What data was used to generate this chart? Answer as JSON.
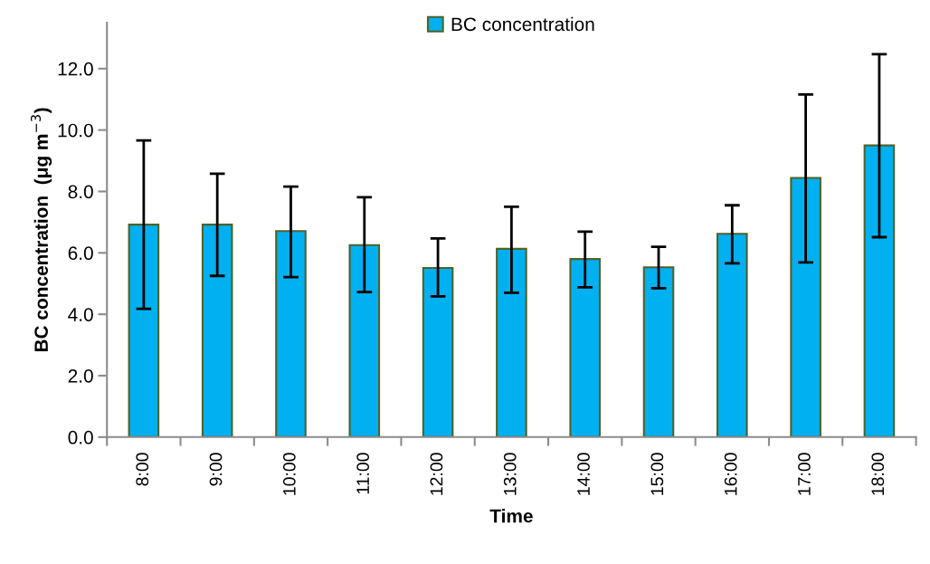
{
  "chart_data": {
    "type": "bar",
    "xlabel": "Time",
    "ylabel": "BC concentration  (μg m$^{−3}$)",
    "categories": [
      "8:00",
      "9:00",
      "10:00",
      "11:00",
      "12:00",
      "13:00",
      "14:00",
      "15:00",
      "16:00",
      "17:00",
      "18:00"
    ],
    "series": [
      {
        "name": "BC concentration",
        "color": "#00b0f0",
        "values": [
          6.92,
          6.92,
          6.71,
          6.25,
          5.51,
          6.13,
          5.8,
          5.53,
          6.62,
          8.44,
          9.5
        ],
        "errors": [
          [
            4.18,
            9.66
          ],
          [
            5.25,
            8.58
          ],
          [
            5.21,
            8.16
          ],
          [
            4.72,
            7.81
          ],
          [
            4.58,
            6.47
          ],
          [
            4.7,
            7.5
          ],
          [
            4.88,
            6.69
          ],
          [
            4.85,
            6.2
          ],
          [
            5.66,
            7.55
          ],
          [
            5.69,
            11.16
          ],
          [
            6.51,
            12.47
          ]
        ]
      }
    ],
    "ylim": [
      0,
      13.5
    ],
    "yticks": [
      {
        "value": 0,
        "label": "0.0"
      },
      {
        "value": 2,
        "label": "2.0"
      },
      {
        "value": 4,
        "label": "4.0"
      },
      {
        "value": 6,
        "label": "6.0"
      },
      {
        "value": 8,
        "label": "8.0"
      },
      {
        "value": 10,
        "label": "10.0"
      },
      {
        "value": 12,
        "label": "12.0"
      }
    ],
    "grid": false,
    "legend": "top"
  }
}
